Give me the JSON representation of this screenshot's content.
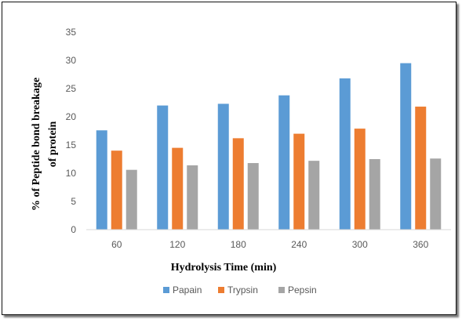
{
  "chart_data": {
    "type": "bar",
    "xlabel": "Hydrolysis  Time (min)",
    "ylabel": [
      "% of Peptide bond breakage",
      "of protein"
    ],
    "categories": [
      "60",
      "120",
      "180",
      "240",
      "300",
      "360"
    ],
    "ylim": [
      0,
      35
    ],
    "yticks": [
      0,
      5,
      10,
      15,
      20,
      25,
      30,
      35
    ],
    "grid": false,
    "legend_position": "bottom",
    "series": [
      {
        "name": "Papain",
        "color": "#5B9BD5",
        "values": [
          17.6,
          22.0,
          22.3,
          23.8,
          26.8,
          29.5
        ]
      },
      {
        "name": "Trypsin",
        "color": "#ED7D31",
        "values": [
          14.0,
          14.5,
          16.2,
          17.0,
          17.9,
          21.8
        ]
      },
      {
        "name": "Pepsin",
        "color": "#A5A5A5",
        "values": [
          10.6,
          11.4,
          11.8,
          12.2,
          12.5,
          12.6
        ]
      }
    ]
  }
}
